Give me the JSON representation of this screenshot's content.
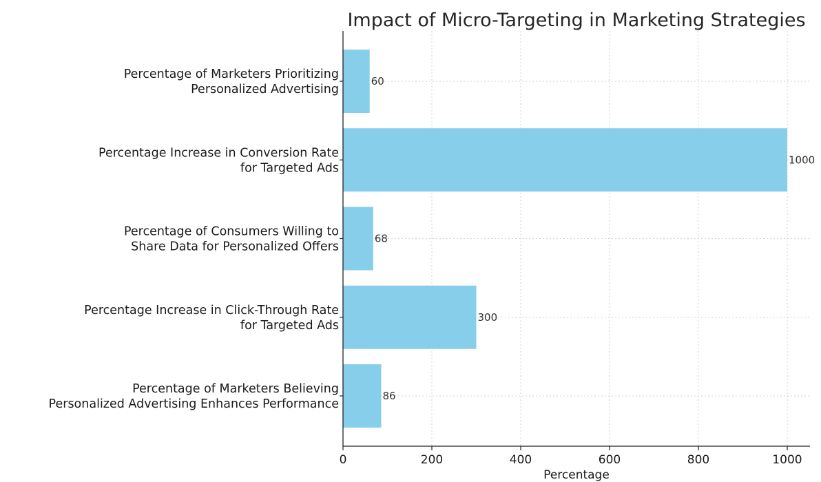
{
  "chart_data": {
    "type": "bar",
    "orientation": "horizontal",
    "title": "Impact of Micro-Targeting in Marketing Strategies",
    "xlabel": "Percentage",
    "ylabel": "",
    "xlim": [
      0,
      1000
    ],
    "x_ticks": [
      0,
      200,
      400,
      600,
      800,
      1000
    ],
    "grid": true,
    "bar_color": "#87ceeb",
    "categories": [
      [
        "Percentage of Marketers Prioritizing",
        "Personalized Advertising"
      ],
      [
        "Percentage Increase in Conversion Rate",
        "for Targeted Ads"
      ],
      [
        "Percentage of Consumers Willing to",
        "Share Data for Personalized Offers"
      ],
      [
        "Percentage Increase in Click-Through Rate",
        "for Targeted Ads"
      ],
      [
        "Percentage of Marketers Believing",
        "Personalized Advertising Enhances Performance"
      ]
    ],
    "values": [
      60,
      1000,
      68,
      300,
      86
    ]
  }
}
